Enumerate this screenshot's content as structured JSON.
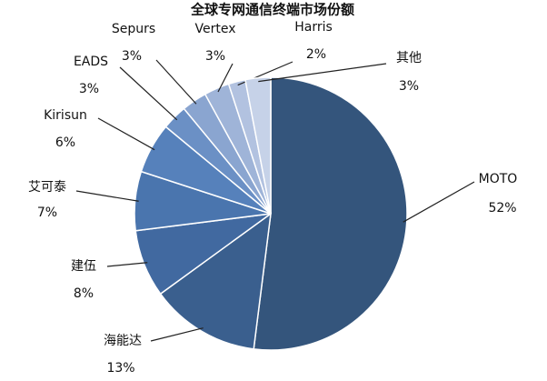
{
  "chart_data": {
    "type": "pie",
    "title": "全球专网通信终端市场份额",
    "categories": [
      "MOTO",
      "海能达",
      "建伍",
      "艾可泰",
      "Kirisun",
      "EADS",
      "Sepurs",
      "Vertex",
      "Harris",
      "其他"
    ],
    "values": [
      52,
      13,
      8,
      7,
      6,
      3,
      3,
      3,
      2,
      3
    ],
    "value_labels": [
      "52%",
      "13%",
      "8%",
      "7%",
      "6%",
      "3%",
      "3%",
      "3%",
      "2%",
      "3%"
    ],
    "colors": [
      "#34557c",
      "#3a5f8e",
      "#4169a0",
      "#4a75ae",
      "#5681bb",
      "#6b90c5",
      "#8aa5d0",
      "#9fb4d8",
      "#b2c2e0",
      "#c6d2e8"
    ]
  }
}
